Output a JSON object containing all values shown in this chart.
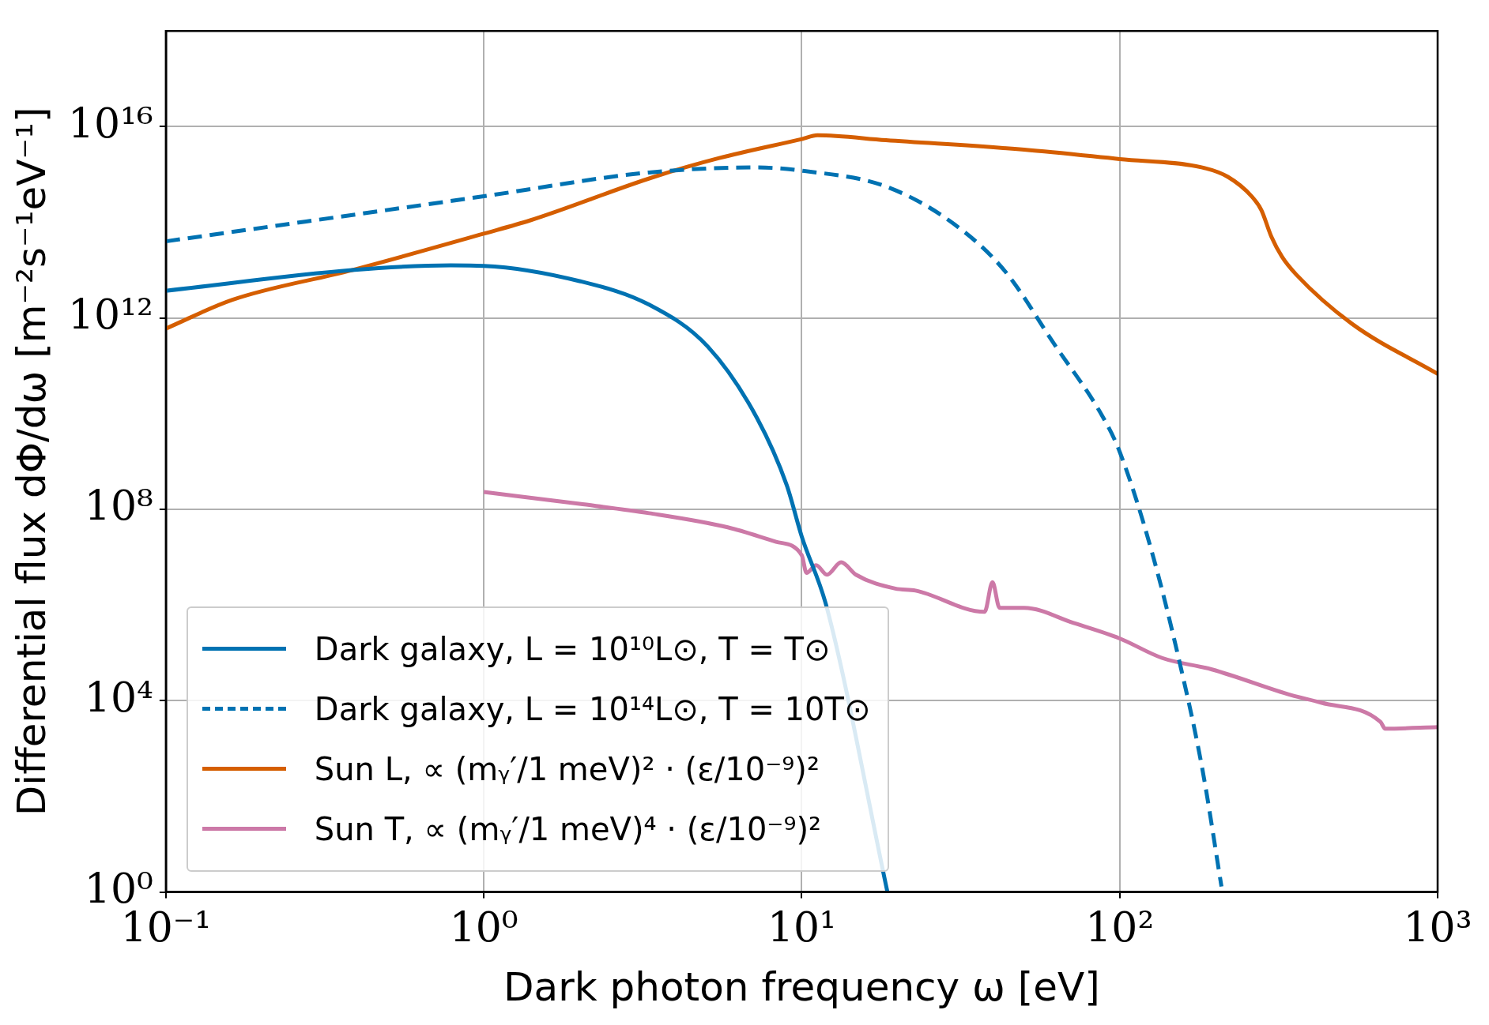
{
  "chart_data": {
    "type": "line",
    "xlabel": "Dark photon frequency ω [eV]",
    "ylabel": "Differential flux dΦ/dω [m⁻²s⁻¹eV⁻¹]",
    "log": "xy",
    "grid": true,
    "legend": "bottom left",
    "marker": "none",
    "xlim": [
      0.1,
      1000
    ],
    "xticks": [
      {
        "value": 0.1,
        "label": "10⁻¹"
      },
      {
        "value": 1,
        "label": "10⁰"
      },
      {
        "value": 10,
        "label": "10¹"
      },
      {
        "value": 100,
        "label": "10²"
      },
      {
        "value": 1000,
        "label": "10³"
      }
    ],
    "ylim": [
      1,
      1e+18
    ],
    "yticks": [
      {
        "value": 1,
        "label": "10⁰"
      },
      {
        "value": 10000.0,
        "label": "10⁴"
      },
      {
        "value": 100000000.0,
        "label": "10⁸"
      },
      {
        "value": 1000000000000.0,
        "label": "10¹²"
      },
      {
        "value": 1e+16,
        "label": "10¹⁶"
      }
    ],
    "series": [
      {
        "name": "Dark galaxy, L = 10¹⁰L⊙, T = T⊙",
        "color": "#0072b2",
        "line_style": "solid",
        "x": [
          0.1,
          0.385,
          0.787,
          1,
          2.0,
          3.31,
          5.07,
          7.24,
          8.97,
          10,
          12.0,
          18.6
        ],
        "values": [
          3700000000000.0,
          10000000000000.0,
          12600000000000.0,
          12300000000000.0,
          5900000000000.0,
          1900000000000.0,
          250000000000.0,
          8000000000.0,
          320000000.0,
          27000000.0,
          870000.0,
          1
        ]
      },
      {
        "name": "Dark galaxy, L = 10¹⁴L⊙, T = 10T⊙",
        "color": "#0072b2",
        "line_style": "dashed",
        "x": [
          0.1,
          1,
          3.31,
          7.24,
          10,
          18.4,
          30.2,
          43.7,
          61.7,
          89,
          100,
          126,
          155,
          182,
          209
        ],
        "values": [
          40000000000000.0,
          350000000000000.0,
          1100000000000000.0,
          1400000000000000.0,
          1200000000000000.0,
          560000000000000.0,
          91000000000000.0,
          9300000000000.0,
          310000000000.0,
          8000000000.0,
          1600000000.0,
          13500000.0,
          56000.0,
          370.0,
          1.3
        ]
      },
      {
        "name": "Sun L, ∝ (mᵧ′/1 meV)² · (ε/10⁻⁹)²",
        "color": "#d55e00",
        "line_style": "solid",
        "x": [
          0.1,
          0.162,
          0.385,
          1,
          1.4,
          3.43,
          5.5,
          10,
          11.2,
          18.4,
          50.1,
          100,
          182,
          219,
          260,
          279,
          300,
          324,
          359,
          537,
          1000
        ],
        "values": [
          600000000000.0,
          2400000000000.0,
          10000000000000.0,
          58000000000000.0,
          110000000000000.0,
          890000000000000.0,
          2200000000000000.0,
          5500000000000000.0,
          6600000000000000.0,
          5200000000000000.0,
          3300000000000000.0,
          2100000000000000.0,
          1400000000000000.0,
          890000000000000.0,
          350000000000000.0,
          180000000000000.0,
          50000000000000.0,
          19000000000000.0,
          8100000000000.0,
          760000000000.0,
          68000000000.0
        ]
      },
      {
        "name": "Sun T, ∝ (mᵧ′/1 meV)⁴ · (ε/10⁻⁹)²",
        "color": "#cc79a7",
        "line_style": "solid",
        "x": [
          1,
          2.0,
          3.31,
          5.85,
          8.3,
          10,
          10.35,
          11.1,
          12.0,
          13.3,
          14.8,
          19.7,
          22.8,
          37.6,
          39.8,
          41.9,
          50.1,
          71.6,
          100,
          136,
          195,
          347,
          430,
          661,
          684,
          1000
        ],
        "values": [
          230000000.0,
          130000000.0,
          83000000.0,
          42000000.0,
          21000000.0,
          11000000.0,
          4700000.0,
          6800000.0,
          4300000.0,
          7800000.0,
          4300000.0,
          2200000.0,
          2000000.0,
          720000.0,
          3000000.0,
          870000.0,
          870000.0,
          420000.0,
          200000.0,
          78000.0,
          45000.0,
          13000.0,
          9100.0,
          3600.0,
          2600.0,
          2800.0
        ]
      }
    ]
  }
}
